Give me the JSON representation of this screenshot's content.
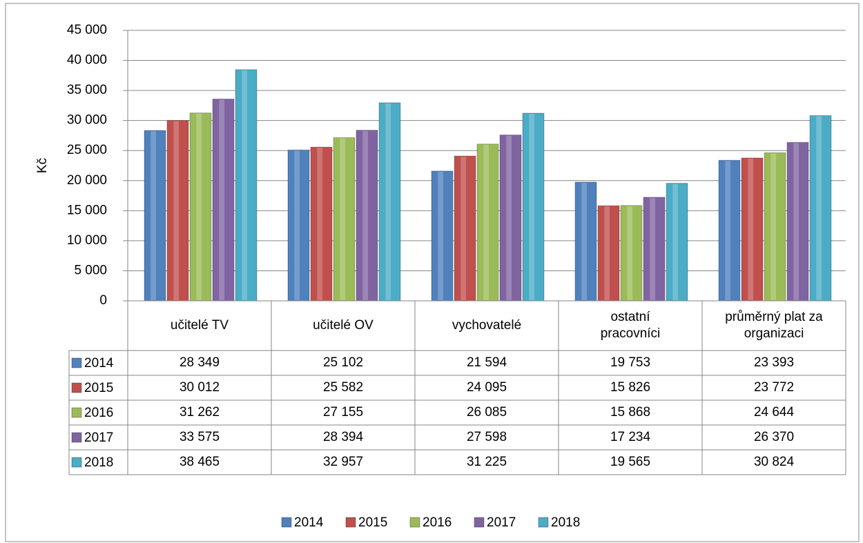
{
  "chart_data": {
    "type": "bar",
    "ylabel": "Kč",
    "categories": [
      "učitelé TV",
      "učitelé OV",
      "vychovatelé",
      "ostatní pracovníci",
      "průměrný plat za organizaci"
    ],
    "series": [
      {
        "name": "2014",
        "color": "#4f81bd",
        "values": [
          28349,
          25102,
          21594,
          19753,
          23393
        ],
        "value_labels": [
          "28 349",
          "25 102",
          "21 594",
          "19 753",
          "23 393"
        ]
      },
      {
        "name": "2015",
        "color": "#c0504d",
        "values": [
          30012,
          25582,
          24095,
          15826,
          23772
        ],
        "value_labels": [
          "30 012",
          "25 582",
          "24 095",
          "15 826",
          "23 772"
        ]
      },
      {
        "name": "2016",
        "color": "#9bbb59",
        "values": [
          31262,
          27155,
          26085,
          15868,
          24644
        ],
        "value_labels": [
          "31 262",
          "27 155",
          "26 085",
          "15 868",
          "24 644"
        ]
      },
      {
        "name": "2017",
        "color": "#8064a2",
        "values": [
          33575,
          28394,
          27598,
          17234,
          26370
        ],
        "value_labels": [
          "33 575",
          "28 394",
          "27 598",
          "17 234",
          "26 370"
        ]
      },
      {
        "name": "2018",
        "color": "#4bacc6",
        "values": [
          38465,
          32957,
          31225,
          19565,
          30824
        ],
        "value_labels": [
          "38 465",
          "32 957",
          "31 225",
          "19 565",
          "30 824"
        ]
      }
    ],
    "ylim": [
      0,
      45000
    ],
    "yticks": [
      0,
      {
        "value": 5000,
        "label": "5 000"
      },
      {
        "value": 10000,
        "label": "10 000"
      },
      {
        "value": 15000,
        "label": "15 000"
      },
      {
        "value": 20000,
        "label": "20 000"
      },
      {
        "value": 25000,
        "label": "25 000"
      },
      {
        "value": 30000,
        "label": "30 000"
      },
      {
        "value": 35000,
        "label": "35 000"
      },
      {
        "value": 40000,
        "label": "40 000"
      },
      {
        "value": 45000,
        "label": "45 000"
      }
    ],
    "grid": true,
    "legend": "bottom"
  }
}
